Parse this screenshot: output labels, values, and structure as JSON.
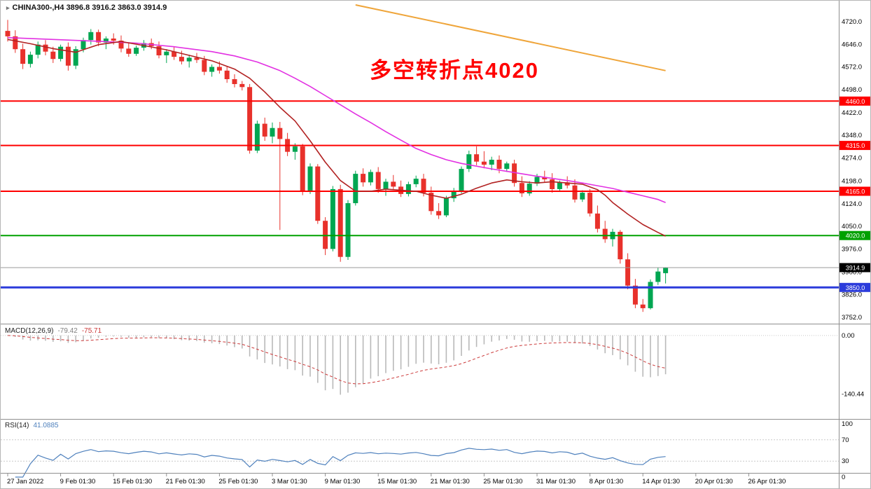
{
  "header": {
    "symbol": "CHINA300-,H4",
    "ohlc": "3896.8 3916.2 3863.0 3914.9"
  },
  "main_panel": {
    "annotation": {
      "text": "多空转折点4020",
      "color": "#ff0000"
    }
  },
  "macd_panel": {
    "title": "MACD(12,26,9)",
    "value_main": "-79.42",
    "value_signal": "-75.71"
  },
  "rsi_panel": {
    "title": "RSI(14)",
    "value": "41.0885",
    "levels": [
      70,
      30
    ]
  },
  "colors": {
    "bull": "#00a651",
    "bear": "#e8312b",
    "ma_fast": "#b22222",
    "ma_slow": "#e231e2",
    "trendline": "#efa53a",
    "level_red": "#ff0000",
    "level_green": "#00a100",
    "level_blue": "#2b3bdb",
    "bid_line": "#9a9a9a",
    "macd_hist": "#b9b9b9",
    "macd_signal": "#cc3a3a",
    "rsi": "#4f81bd",
    "tag_current_bg": "#000000",
    "annotation": "#ff0000"
  },
  "chart_data": {
    "type": "candlestick",
    "symbol": "CHINA300-",
    "timeframe": "H4",
    "last_ohlc": {
      "open": 3896.8,
      "high": 3916.2,
      "low": 3863.0,
      "close": 3914.9
    },
    "y_ticks": [
      4720,
      4646,
      4572,
      4498,
      4422,
      4348,
      4274,
      4198,
      4124,
      4050,
      3976,
      3900,
      3826,
      3752
    ],
    "x_labels": [
      {
        "bar": 0,
        "t": "27 Jan 2022"
      },
      {
        "bar": 7,
        "t": "9 Feb 01:30"
      },
      {
        "bar": 14,
        "t": "15 Feb 01:30"
      },
      {
        "bar": 21,
        "t": "21 Feb 01:30"
      },
      {
        "bar": 28,
        "t": "25 Feb 01:30"
      },
      {
        "bar": 35,
        "t": "3 Mar 01:30"
      },
      {
        "bar": 42,
        "t": "9 Mar 01:30"
      },
      {
        "bar": 49,
        "t": "15 Mar 01:30"
      },
      {
        "bar": 56,
        "t": "21 Mar 01:30"
      },
      {
        "bar": 63,
        "t": "25 Mar 01:30"
      },
      {
        "bar": 70,
        "t": "31 Mar 01:30"
      },
      {
        "bar": 77,
        "t": "8 Apr 01:30"
      },
      {
        "bar": 84,
        "t": "14 Apr 01:30"
      },
      {
        "bar": 91,
        "t": "20 Apr 01:30"
      },
      {
        "bar": 98,
        "t": "26 Apr 01:30"
      }
    ],
    "candles": [
      [
        4690,
        4726,
        4655,
        4672
      ],
      [
        4672,
        4692,
        4618,
        4630
      ],
      [
        4630,
        4648,
        4565,
        4582
      ],
      [
        4582,
        4622,
        4570,
        4612
      ],
      [
        4612,
        4655,
        4600,
        4645
      ],
      [
        4645,
        4660,
        4610,
        4622
      ],
      [
        4622,
        4638,
        4585,
        4598
      ],
      [
        4598,
        4645,
        4590,
        4638
      ],
      [
        4638,
        4652,
        4560,
        4576
      ],
      [
        4576,
        4640,
        4565,
        4630
      ],
      [
        4630,
        4668,
        4620,
        4660
      ],
      [
        4660,
        4696,
        4645,
        4686
      ],
      [
        4686,
        4694,
        4640,
        4652
      ],
      [
        4652,
        4672,
        4630,
        4665
      ],
      [
        4665,
        4682,
        4645,
        4658
      ],
      [
        4658,
        4675,
        4620,
        4632
      ],
      [
        4632,
        4650,
        4605,
        4615
      ],
      [
        4615,
        4642,
        4608,
        4635
      ],
      [
        4635,
        4660,
        4625,
        4650
      ],
      [
        4650,
        4665,
        4630,
        4640
      ],
      [
        4640,
        4655,
        4600,
        4610
      ],
      [
        4610,
        4630,
        4585,
        4622
      ],
      [
        4622,
        4638,
        4595,
        4605
      ],
      [
        4605,
        4625,
        4580,
        4590
      ],
      [
        4590,
        4612,
        4570,
        4602
      ],
      [
        4602,
        4618,
        4585,
        4595
      ],
      [
        4595,
        4608,
        4545,
        4556
      ],
      [
        4556,
        4580,
        4540,
        4572
      ],
      [
        4572,
        4590,
        4550,
        4560
      ],
      [
        4560,
        4575,
        4520,
        4532
      ],
      [
        4532,
        4548,
        4505,
        4516
      ],
      [
        4516,
        4526,
        4495,
        4506
      ],
      [
        4506,
        4516,
        4288,
        4298
      ],
      [
        4298,
        4396,
        4290,
        4386
      ],
      [
        4386,
        4406,
        4330,
        4344
      ],
      [
        4344,
        4390,
        4322,
        4372
      ],
      [
        4372,
        4392,
        4038,
        4336
      ],
      [
        4336,
        4356,
        4280,
        4294
      ],
      [
        4294,
        4322,
        4268,
        4312
      ],
      [
        4312,
        4320,
        4152,
        4164
      ],
      [
        4164,
        4256,
        4156,
        4246
      ],
      [
        4246,
        4254,
        4058,
        4068
      ],
      [
        4068,
        4080,
        3956,
        3976
      ],
      [
        3976,
        4182,
        3968,
        4172
      ],
      [
        4172,
        4186,
        3934,
        3950
      ],
      [
        3950,
        4136,
        3940,
        4126
      ],
      [
        4126,
        4232,
        4118,
        4222
      ],
      [
        4222,
        4240,
        4180,
        4194
      ],
      [
        4194,
        4236,
        4184,
        4228
      ],
      [
        4228,
        4244,
        4160,
        4172
      ],
      [
        4172,
        4206,
        4150,
        4196
      ],
      [
        4196,
        4218,
        4170,
        4180
      ],
      [
        4180,
        4200,
        4146,
        4156
      ],
      [
        4156,
        4196,
        4148,
        4188
      ],
      [
        4188,
        4216,
        4178,
        4206
      ],
      [
        4206,
        4222,
        4148,
        4160
      ],
      [
        4160,
        4180,
        4088,
        4100
      ],
      [
        4100,
        4126,
        4074,
        4086
      ],
      [
        4086,
        4150,
        4080,
        4142
      ],
      [
        4142,
        4176,
        4130,
        4166
      ],
      [
        4166,
        4246,
        4158,
        4238
      ],
      [
        4238,
        4298,
        4228,
        4286
      ],
      [
        4286,
        4312,
        4250,
        4262
      ],
      [
        4262,
        4296,
        4240,
        4252
      ],
      [
        4252,
        4278,
        4234,
        4268
      ],
      [
        4268,
        4282,
        4224,
        4238
      ],
      [
        4238,
        4262,
        4228,
        4256
      ],
      [
        4256,
        4268,
        4180,
        4192
      ],
      [
        4192,
        4214,
        4146,
        4158
      ],
      [
        4158,
        4198,
        4150,
        4190
      ],
      [
        4190,
        4222,
        4182,
        4212
      ],
      [
        4212,
        4232,
        4194,
        4204
      ],
      [
        4204,
        4224,
        4160,
        4172
      ],
      [
        4172,
        4200,
        4164,
        4194
      ],
      [
        4194,
        4214,
        4174,
        4184
      ],
      [
        4184,
        4204,
        4128,
        4138
      ],
      [
        4138,
        4168,
        4130,
        4160
      ],
      [
        4160,
        4172,
        4082,
        4092
      ],
      [
        4092,
        4118,
        4030,
        4042
      ],
      [
        4042,
        4068,
        3996,
        4008
      ],
      [
        4008,
        4042,
        3984,
        4032
      ],
      [
        4032,
        4038,
        3928,
        3942
      ],
      [
        3942,
        3962,
        3844,
        3856
      ],
      [
        3856,
        3878,
        3782,
        3794
      ],
      [
        3794,
        3812,
        3770,
        3782
      ],
      [
        3782,
        3876,
        3778,
        3868
      ],
      [
        3868,
        3916,
        3858,
        3902
      ],
      [
        3896.8,
        3916.2,
        3863.0,
        3914.9
      ]
    ],
    "levels": [
      {
        "price": 4460.0,
        "label": "4460.0",
        "color": "#ff0000",
        "width": 2
      },
      {
        "price": 4315.0,
        "label": "4315.0",
        "color": "#ff0000",
        "width": 2
      },
      {
        "price": 4165.0,
        "label": "4165.0",
        "color": "#ff0000",
        "width": 2
      },
      {
        "price": 4020.0,
        "label": "4020.0",
        "color": "#00a100",
        "width": 2
      },
      {
        "price": 3850.0,
        "label": "3850.0",
        "color": "#2b3bdb",
        "width": 3
      }
    ],
    "current_price": {
      "value": 3914.9,
      "label": "3914.9"
    },
    "moving_averages": [
      {
        "name": "ma-slow",
        "color": "#e231e2",
        "points": [
          [
            0,
            4668
          ],
          [
            6,
            4662
          ],
          [
            12,
            4656
          ],
          [
            17,
            4650
          ],
          [
            22,
            4638
          ],
          [
            27,
            4622
          ],
          [
            30,
            4608
          ],
          [
            33,
            4588
          ],
          [
            36,
            4560
          ],
          [
            38,
            4535
          ],
          [
            40,
            4508
          ],
          [
            42,
            4478
          ],
          [
            44,
            4448
          ],
          [
            46,
            4418
          ],
          [
            48,
            4390
          ],
          [
            50,
            4360
          ],
          [
            52,
            4332
          ],
          [
            54,
            4305
          ],
          [
            56,
            4285
          ],
          [
            58,
            4268
          ],
          [
            60,
            4256
          ],
          [
            62,
            4247
          ],
          [
            64,
            4238
          ],
          [
            66,
            4230
          ],
          [
            68,
            4222
          ],
          [
            70,
            4214
          ],
          [
            72,
            4207
          ],
          [
            74,
            4200
          ],
          [
            76,
            4192
          ],
          [
            78,
            4183
          ],
          [
            80,
            4174
          ],
          [
            82,
            4162
          ],
          [
            84,
            4150
          ],
          [
            86,
            4138
          ],
          [
            87,
            4128
          ]
        ]
      },
      {
        "name": "ma-fast",
        "color": "#b22222",
        "points": [
          [
            0,
            4662
          ],
          [
            3,
            4648
          ],
          [
            6,
            4632
          ],
          [
            9,
            4620
          ],
          [
            12,
            4645
          ],
          [
            15,
            4655
          ],
          [
            18,
            4642
          ],
          [
            21,
            4628
          ],
          [
            24,
            4610
          ],
          [
            27,
            4592
          ],
          [
            30,
            4565
          ],
          [
            32,
            4535
          ],
          [
            34,
            4490
          ],
          [
            36,
            4440
          ],
          [
            38,
            4395
          ],
          [
            40,
            4330
          ],
          [
            42,
            4260
          ],
          [
            44,
            4200
          ],
          [
            46,
            4165
          ],
          [
            48,
            4165
          ],
          [
            50,
            4172
          ],
          [
            52,
            4168
          ],
          [
            54,
            4165
          ],
          [
            56,
            4152
          ],
          [
            58,
            4142
          ],
          [
            60,
            4155
          ],
          [
            62,
            4175
          ],
          [
            64,
            4192
          ],
          [
            66,
            4202
          ],
          [
            68,
            4196
          ],
          [
            70,
            4192
          ],
          [
            72,
            4196
          ],
          [
            74,
            4192
          ],
          [
            76,
            4188
          ],
          [
            78,
            4170
          ],
          [
            79,
            4152
          ],
          [
            80,
            4128
          ],
          [
            82,
            4090
          ],
          [
            84,
            4056
          ],
          [
            86,
            4030
          ],
          [
            87,
            4018
          ]
        ]
      }
    ],
    "trendline": {
      "color": "#efa53a",
      "from": {
        "bar": 46,
        "price": 4775
      },
      "to": {
        "bar": 87,
        "price": 4560
      }
    },
    "macd": {
      "params": "12,26,9",
      "last_main": -79.42,
      "last_signal": -75.71,
      "axis_labels": [
        {
          "v": 0,
          "t": "0.00"
        },
        {
          "v": -140.44,
          "t": "-140.44"
        }
      ]
    },
    "rsi": {
      "period": 14,
      "last_value": 41.0885,
      "axis_labels": [
        {
          "v": 100,
          "t": "100"
        },
        {
          "v": 70,
          "t": "70"
        },
        {
          "v": 30,
          "t": "30"
        },
        {
          "v": 0,
          "t": "0"
        }
      ]
    }
  }
}
